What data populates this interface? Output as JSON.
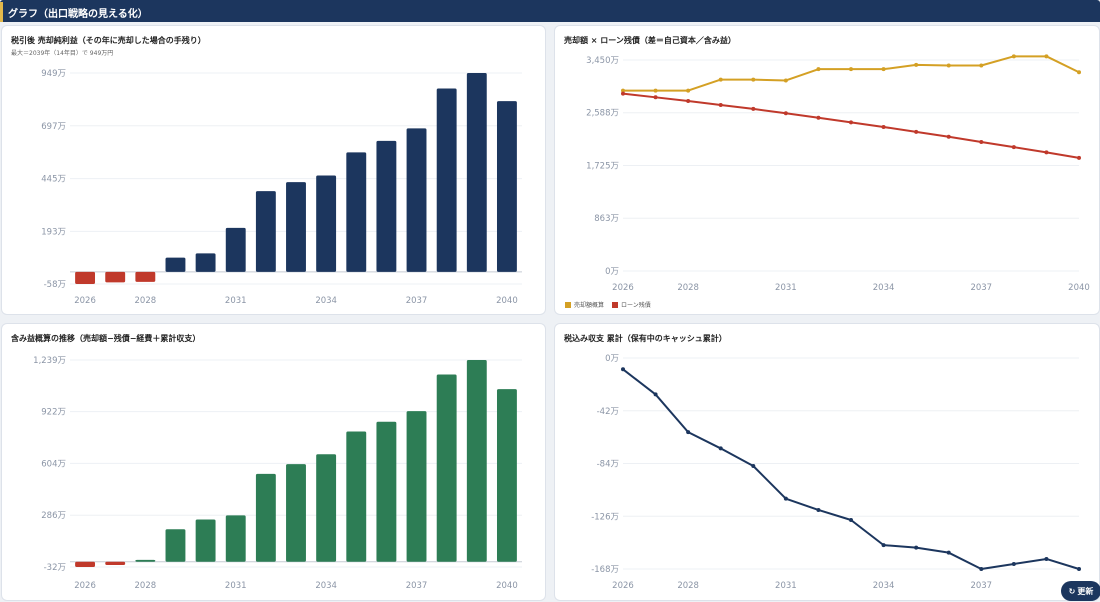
{
  "header": {
    "title": "グラフ（出口戦略の見える化）"
  },
  "refresh_label": "更新",
  "chart_data": [
    {
      "id": "net_profit",
      "type": "bar",
      "title": "税引後 売却純利益（その年に売却した場合の手残り）",
      "subtitle": "最大＝2039年（14年目）で 949万円",
      "x": [
        2026,
        2027,
        2028,
        2029,
        2030,
        2031,
        2032,
        2033,
        2034,
        2035,
        2036,
        2037,
        2038,
        2039,
        2040
      ],
      "values": [
        -58,
        -50,
        -48,
        68,
        88,
        210,
        385,
        428,
        460,
        570,
        625,
        685,
        875,
        949,
        815
      ],
      "yticks": [
        "-58万",
        "193万",
        "445万",
        "697万",
        "949万"
      ],
      "ytick_values": [
        -58,
        193,
        445,
        697,
        949
      ],
      "xticks": [
        "2026",
        "2028",
        "2031",
        "2034",
        "2037",
        "2040"
      ],
      "xtick_values": [
        2026,
        2028,
        2031,
        2034,
        2037,
        2040
      ],
      "ylim": [
        -58,
        949
      ],
      "colors": {
        "positive": "#1c365e",
        "negative": "#c0392b"
      }
    },
    {
      "id": "sale_vs_loan",
      "type": "line",
      "title": "売却額 × ローン残債（差＝自己資本／含み益）",
      "x": [
        2026,
        2027,
        2028,
        2029,
        2030,
        2031,
        2032,
        2033,
        2034,
        2035,
        2036,
        2037,
        2038,
        2039,
        2040
      ],
      "series": [
        {
          "name": "売却額概算",
          "color": "#d4a024",
          "values": [
            2950,
            2950,
            2950,
            3130,
            3130,
            3115,
            3300,
            3300,
            3300,
            3370,
            3360,
            3360,
            3510,
            3510,
            3250
          ]
        },
        {
          "name": "ローン残債",
          "color": "#c0392b",
          "values": [
            2900,
            2840,
            2780,
            2715,
            2650,
            2580,
            2505,
            2430,
            2355,
            2275,
            2195,
            2110,
            2025,
            1940,
            1850
          ]
        }
      ],
      "yticks": [
        "0万",
        "863万",
        "1,725万",
        "2,588万",
        "3,450万"
      ],
      "ytick_values": [
        0,
        863,
        1725,
        2588,
        3450
      ],
      "xticks": [
        "2026",
        "2028",
        "2031",
        "2034",
        "2037",
        "2040"
      ],
      "xtick_values": [
        2026,
        2028,
        2031,
        2034,
        2037,
        2040
      ],
      "ylim": [
        0,
        3450
      ]
    },
    {
      "id": "unrealized_gain",
      "type": "bar",
      "title": "含み益概算の推移（売却額−残債−経費＋累計収支）",
      "x": [
        2026,
        2027,
        2028,
        2029,
        2030,
        2031,
        2032,
        2033,
        2034,
        2035,
        2036,
        2037,
        2038,
        2039,
        2040
      ],
      "values": [
        -32,
        -20,
        12,
        200,
        260,
        285,
        540,
        600,
        660,
        800,
        860,
        925,
        1150,
        1239,
        1060
      ],
      "yticks": [
        "-32万",
        "286万",
        "604万",
        "922万",
        "1,239万"
      ],
      "ytick_values": [
        -32,
        286,
        604,
        922,
        1239
      ],
      "xticks": [
        "2026",
        "2028",
        "2031",
        "2034",
        "2037",
        "2040"
      ],
      "xtick_values": [
        2026,
        2028,
        2031,
        2034,
        2037,
        2040
      ],
      "ylim": [
        -32,
        1239
      ],
      "colors": {
        "positive": "#2d7d55",
        "negative": "#c0392b"
      }
    },
    {
      "id": "cumulative_cashflow",
      "type": "line",
      "title": "税込み収支 累計（保有中のキャッシュ累計）",
      "x": [
        2026,
        2027,
        2028,
        2029,
        2030,
        2031,
        2032,
        2033,
        2034,
        2035,
        2036,
        2037,
        2038,
        2039,
        2040
      ],
      "series": [
        {
          "color": "#1c365e",
          "values": [
            -9,
            -29,
            -59,
            -72,
            -86,
            -112,
            -121,
            -129,
            -149,
            -151,
            -155,
            -168,
            -164,
            -160,
            -168
          ]
        }
      ],
      "yticks": [
        "-168万",
        "-126万",
        "-84万",
        "-42万",
        "0万"
      ],
      "ytick_values": [
        -168,
        -126,
        -84,
        -42,
        0
      ],
      "xticks": [
        "2026",
        "2028",
        "2031",
        "2034",
        "2037"
      ],
      "xtick_values": [
        2026,
        2028,
        2031,
        2034,
        2037
      ],
      "ylim": [
        -168,
        0
      ]
    }
  ]
}
